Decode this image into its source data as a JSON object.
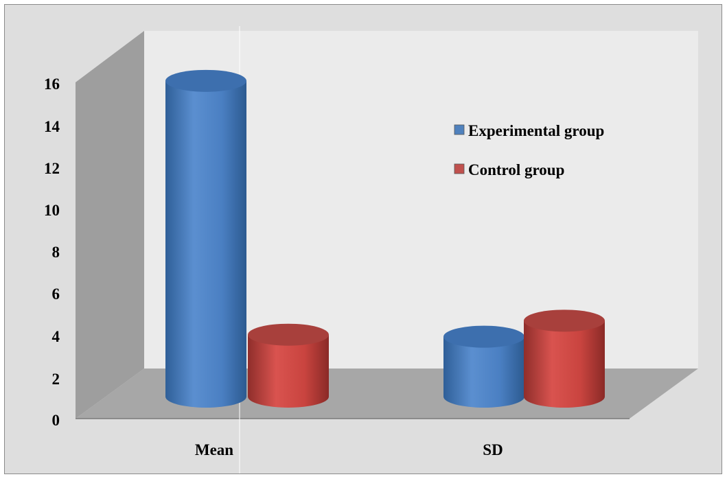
{
  "chart_data": {
    "type": "bar",
    "style": "3d-cylinder",
    "categories": [
      "Mean",
      "SD"
    ],
    "series": [
      {
        "name": "Experimental group",
        "values": [
          15.8,
          3.0
        ],
        "color": "#4f81bd"
      },
      {
        "name": "Control group",
        "values": [
          3.1,
          3.8
        ],
        "color": "#c0504d"
      }
    ],
    "ylim": [
      0,
      16
    ],
    "yticks": [
      0,
      2,
      4,
      6,
      8,
      10,
      12,
      14,
      16
    ],
    "legend_position": "right",
    "grid": false
  }
}
